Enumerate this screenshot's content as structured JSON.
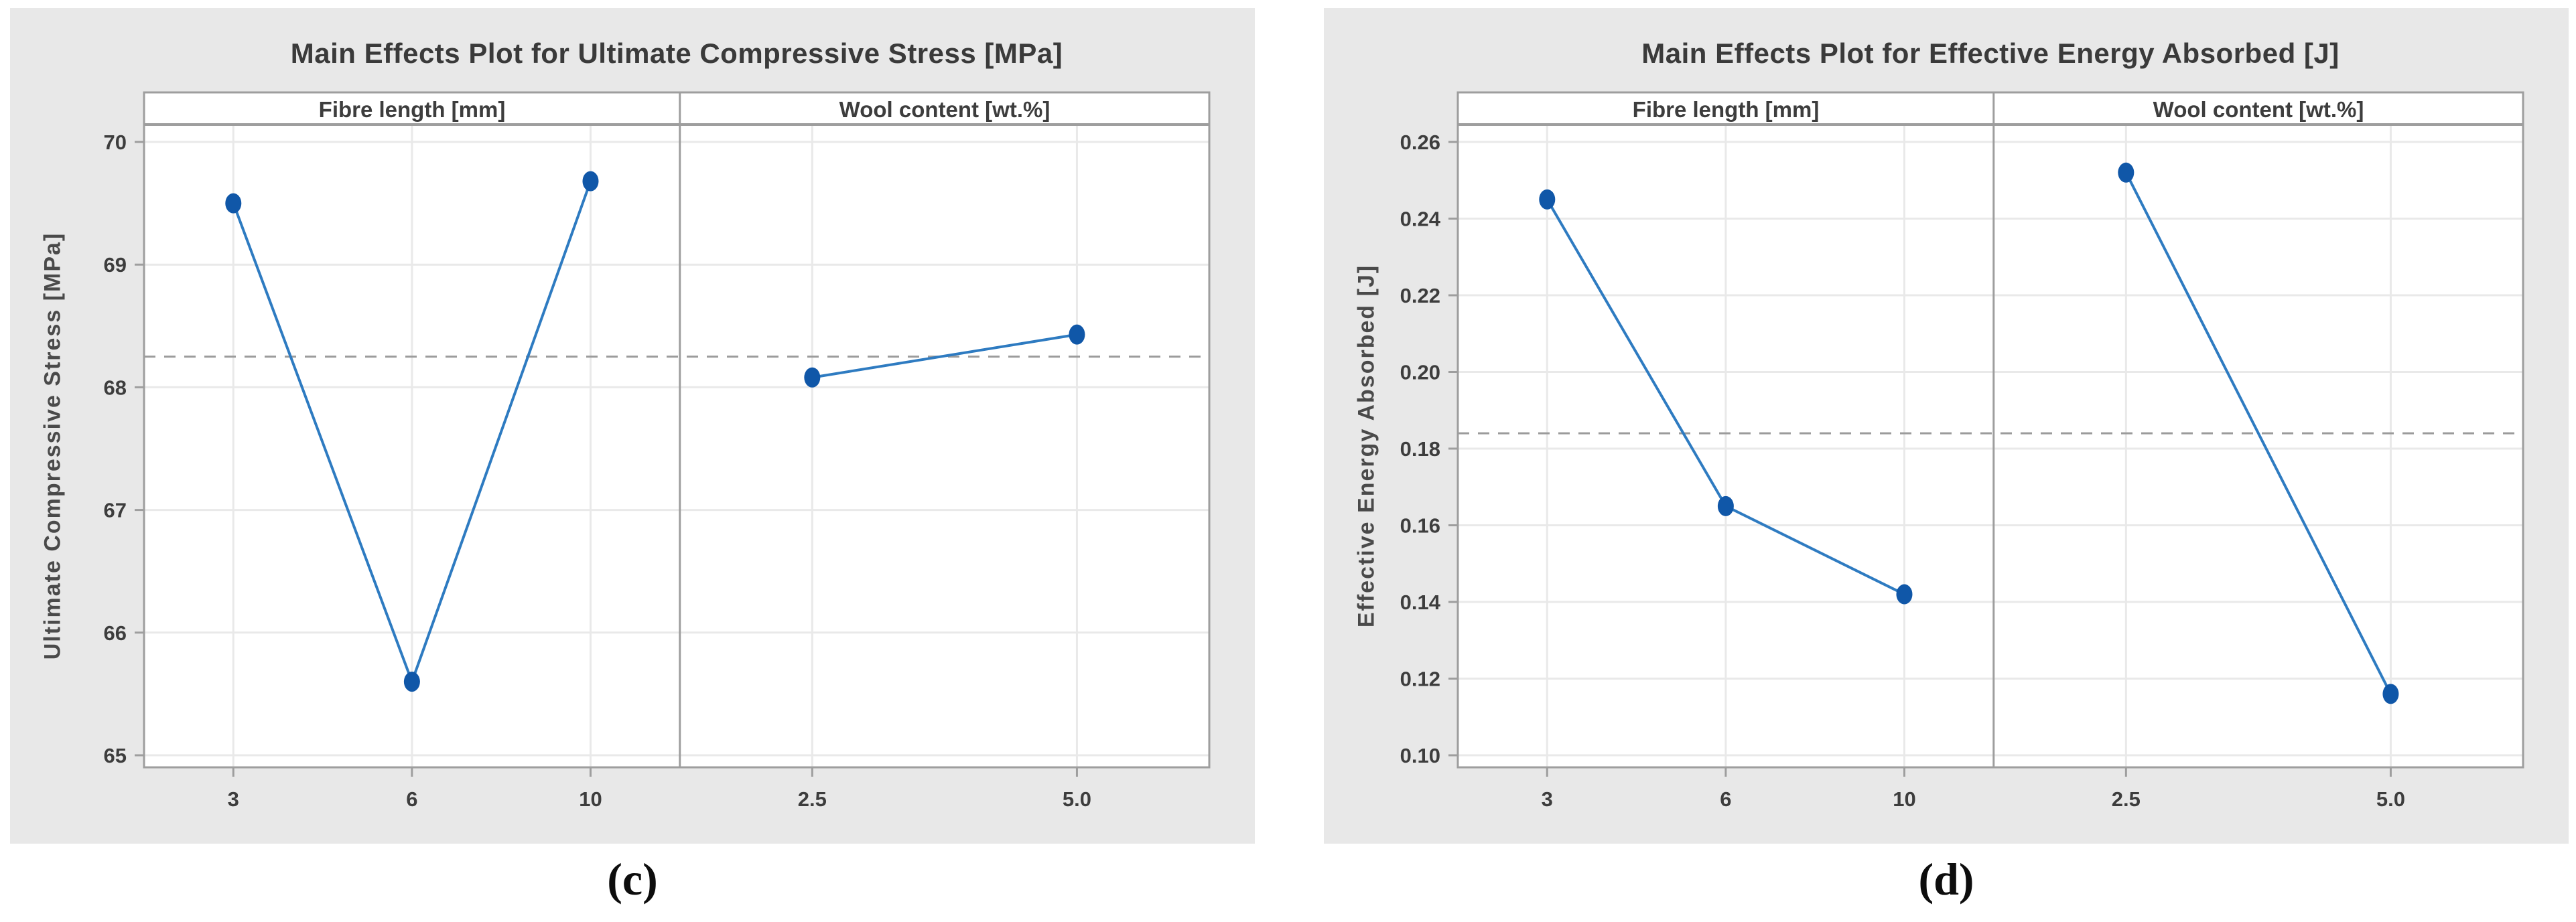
{
  "colors": {
    "figure_background": "#e8e8e8",
    "plot_background": "#ffffff",
    "frame": "#9e9e9e",
    "gridline": "#e9e9e9",
    "mean_dashed": "#9b9b9b",
    "series_line": "#2e7bc1",
    "marker_fill": "#1057a8",
    "text": "#3d3d3d"
  },
  "chart_data": [
    {
      "type": "line",
      "title": "Main Effects Plot for Ultimate Compressive Stress [MPa]",
      "ylabel": "Ultimate Compressive Stress [MPa]",
      "caption": "(c)",
      "legend_position": "none",
      "grid": true,
      "yticks": [
        65,
        66,
        67,
        68,
        69,
        70
      ],
      "ytick_labels": [
        "65",
        "66",
        "67",
        "68",
        "69",
        "70"
      ],
      "ylim": [
        64.9,
        70.14
      ],
      "mean_line": 68.25,
      "panels": [
        {
          "header": "Fibre length [mm]",
          "categories": [
            "3",
            "6",
            "10"
          ],
          "values": [
            69.5,
            65.6,
            69.68
          ]
        },
        {
          "header": "Wool content [wt.%]",
          "categories": [
            "2.5",
            "5.0"
          ],
          "values": [
            68.08,
            68.43
          ]
        }
      ]
    },
    {
      "type": "line",
      "title": "Main Effects Plot for Effective Energy Absorbed [J]",
      "ylabel": "Effective Energy Absorbed [J]",
      "caption": "(d)",
      "legend_position": "none",
      "grid": true,
      "yticks": [
        0.1,
        0.12,
        0.14,
        0.16,
        0.18,
        0.2,
        0.22,
        0.24,
        0.26
      ],
      "ytick_labels": [
        "0.10",
        "0.12",
        "0.14",
        "0.16",
        "0.18",
        "0.20",
        "0.22",
        "0.24",
        "0.26"
      ],
      "ylim": [
        0.097,
        0.2645
      ],
      "mean_line": 0.184,
      "panels": [
        {
          "header": "Fibre length [mm]",
          "categories": [
            "3",
            "6",
            "10"
          ],
          "values": [
            0.245,
            0.165,
            0.142
          ]
        },
        {
          "header": "Wool content [wt.%]",
          "categories": [
            "2.5",
            "5.0"
          ],
          "values": [
            0.252,
            0.116
          ]
        }
      ]
    }
  ]
}
